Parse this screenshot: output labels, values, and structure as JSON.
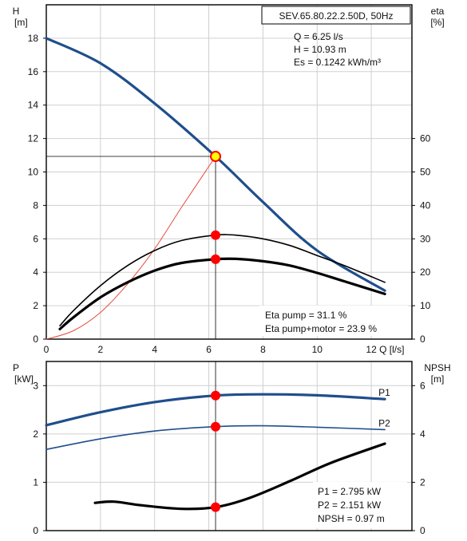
{
  "title_box": "SEV.65.80.22.2.50D, 50Hz",
  "colors": {
    "pump_curve": "#1f4e8c",
    "marker": "#ff0000",
    "marker_duty": "#ffff00",
    "grid": "#d0d0d0",
    "black": "#000000",
    "system_curve": "#e74c3c"
  },
  "chart_data": [
    {
      "type": "line",
      "name": "head-efficiency",
      "axis_left": {
        "label_top": "H",
        "label_unit": "[m]",
        "ylim": [
          0,
          20
        ],
        "ticks": [
          0,
          2,
          4,
          6,
          8,
          10,
          12,
          14,
          16,
          18
        ]
      },
      "axis_right": {
        "label_top": "eta",
        "label_unit": "[%]",
        "ylim": [
          0,
          100
        ],
        "ticks": [
          0,
          10,
          20,
          30,
          40,
          50,
          60
        ]
      },
      "axis_x": {
        "label": "Q [l/s]",
        "xlim": [
          0,
          13.5
        ],
        "ticks": [
          0,
          2,
          4,
          6,
          8,
          10,
          12
        ]
      },
      "grid": true,
      "annotations_top": [
        "Q = 6.25 l/s",
        "H = 10.93 m",
        "Es = 0.1242 kWh/m³"
      ],
      "annotations_bottom": [
        "Eta pump = 31.1 %",
        "Eta pump+motor = 23.9 %"
      ],
      "duty_point": {
        "x": 6.25,
        "y": 10.93
      },
      "series": [
        {
          "axis": "left",
          "x": [
            0,
            2,
            4,
            6.25,
            8,
            10,
            12.5
          ],
          "y": [
            18.0,
            16.5,
            14.1,
            10.93,
            8.2,
            5.3,
            2.9
          ]
        },
        {
          "axis": "left",
          "x": [
            0,
            1,
            2,
            3,
            4,
            5,
            6.25
          ],
          "y": [
            0,
            0.5,
            1.6,
            3.3,
            5.4,
            7.9,
            10.93
          ]
        },
        {
          "axis": "right",
          "x": [
            0.5,
            1,
            2,
            3,
            4,
            5,
            6.25,
            7,
            8,
            9,
            10,
            11,
            12.5
          ],
          "y": [
            4,
            8.5,
            16,
            22,
            26.5,
            29.5,
            31.1,
            31.1,
            30,
            28,
            25,
            22,
            17
          ]
        },
        {
          "axis": "right",
          "x": [
            0.5,
            1,
            2,
            3,
            4,
            5,
            6.25,
            7,
            8,
            9,
            10,
            11,
            12.5
          ],
          "y": [
            3,
            6.5,
            12.5,
            17,
            20.5,
            22.8,
            23.9,
            24,
            23.3,
            22,
            19.8,
            17.3,
            13.5
          ]
        }
      ],
      "markers": [
        {
          "axis": "right",
          "x": 6.25,
          "y": 31.1
        },
        {
          "axis": "right",
          "x": 6.25,
          "y": 23.9
        }
      ]
    },
    {
      "type": "line",
      "name": "power-npsh",
      "axis_left": {
        "label_top": "P",
        "label_unit": "[kW]",
        "ylim": [
          0,
          3.5
        ],
        "ticks": [
          0,
          1,
          2,
          3
        ]
      },
      "axis_right": {
        "label_top": "NPSH",
        "label_unit": "[m]",
        "ylim": [
          0,
          7
        ],
        "ticks": [
          0,
          2,
          4,
          6
        ]
      },
      "axis_x": {
        "xlim": [
          0,
          13.5
        ]
      },
      "grid": true,
      "annotations_bottom": [
        "P1 = 2.795 kW",
        "P2 = 2.151 kW",
        "NPSH = 0.97 m"
      ],
      "series": [
        {
          "name": "P1",
          "axis": "left",
          "x": [
            0,
            2,
            4,
            6.25,
            8,
            10,
            12.5
          ],
          "y": [
            2.18,
            2.45,
            2.66,
            2.795,
            2.82,
            2.8,
            2.72
          ]
        },
        {
          "name": "P2",
          "axis": "left",
          "x": [
            0,
            2,
            4,
            6.25,
            8,
            10,
            12.5
          ],
          "y": [
            1.68,
            1.9,
            2.06,
            2.151,
            2.17,
            2.14,
            2.09
          ]
        },
        {
          "axis": "right",
          "x": [
            1.8,
            2.5,
            3.5,
            5,
            6.25,
            7.5,
            9,
            10.5,
            12.5
          ],
          "y": [
            1.15,
            1.2,
            1.05,
            0.9,
            0.97,
            1.35,
            2.05,
            2.8,
            3.6
          ]
        }
      ],
      "markers": [
        {
          "axis": "left",
          "x": 6.25,
          "y": 2.795
        },
        {
          "axis": "left",
          "x": 6.25,
          "y": 2.151
        },
        {
          "axis": "right",
          "x": 6.25,
          "y": 0.97
        }
      ]
    }
  ]
}
